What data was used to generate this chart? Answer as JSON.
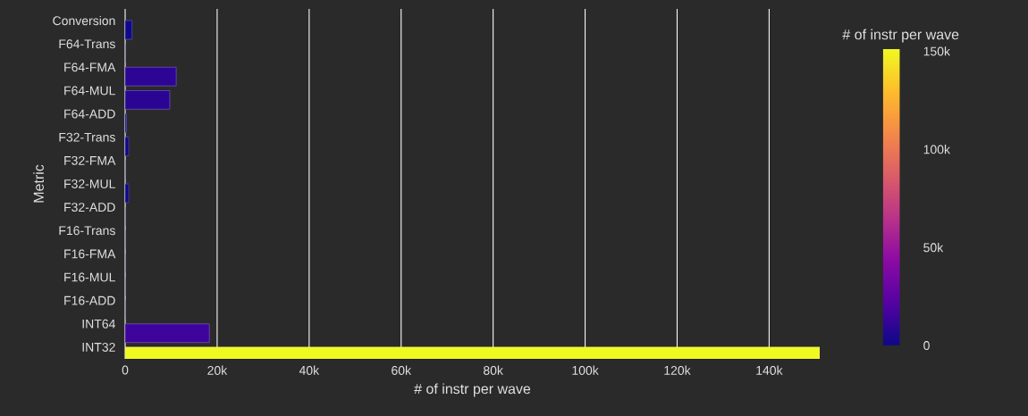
{
  "chart_data": {
    "type": "bar",
    "orientation": "horizontal",
    "categories": [
      "Conversion",
      "F64-Trans",
      "F64-FMA",
      "F64-MUL",
      "F64-ADD",
      "F32-Trans",
      "F32-FMA",
      "F32-MUL",
      "F32-ADD",
      "F16-Trans",
      "F16-FMA",
      "F16-MUL",
      "F16-ADD",
      "INT64",
      "INT32"
    ],
    "values": [
      1500,
      0,
      11100,
      9700,
      300,
      800,
      0,
      800,
      0,
      0,
      0,
      0,
      0,
      18300,
      151000
    ],
    "colors": [
      "#10078a",
      "#0d0887",
      "#2c0594",
      "#2a0593",
      "#0e0887",
      "#0f0888",
      "#0d0887",
      "#0f0888",
      "#0d0887",
      "#0d0887",
      "#0d0887",
      "#0d0887",
      "#0d0887",
      "#3e049c",
      "#f0f921"
    ],
    "xlabel": "# of instr per wave",
    "ylabel": "Metric",
    "clabel": "# of instr per wave",
    "xlim": [
      0,
      151000
    ],
    "xticks": [
      0,
      {
        "value": 20000,
        "label": "20k"
      },
      {
        "value": 40000,
        "label": "40k"
      },
      {
        "value": 60000,
        "label": "60k"
      },
      {
        "value": 80000,
        "label": "80k"
      },
      {
        "value": 100000,
        "label": "100k"
      },
      {
        "value": 120000,
        "label": "120k"
      },
      {
        "value": 140000,
        "label": "140k"
      }
    ],
    "clim": [
      0,
      151000
    ],
    "cticks": [
      0,
      {
        "value": 50000,
        "label": "50k"
      },
      {
        "value": 100000,
        "label": "100k"
      },
      {
        "value": 150000,
        "label": "150k"
      }
    ],
    "grid": "x"
  }
}
